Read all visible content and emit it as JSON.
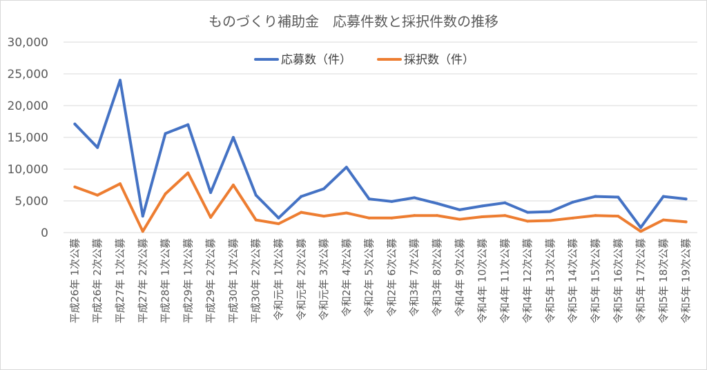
{
  "chart_data": {
    "type": "line",
    "title": "ものづくり補助金　応募件数と採択件数の推移",
    "xlabel": "",
    "ylabel": "",
    "ylim": [
      0,
      30000
    ],
    "yticks": [
      0,
      5000,
      10000,
      15000,
      20000,
      25000,
      30000
    ],
    "ytick_labels": [
      "0",
      "5,000",
      "10,000",
      "15,000",
      "20,000",
      "25,000",
      "30,000"
    ],
    "grid": true,
    "legend_position": "top-center",
    "categories": [
      "平成26年 1次公募",
      "平成26年 2次公募",
      "平成27年 1次公募",
      "平成27年 2次公募",
      "平成28年 1次公募",
      "平成29年 1次公募",
      "平成29年 2次公募",
      "平成30年 1次公募",
      "平成30年 2次公募",
      "令和元年 1次公募",
      "令和元年 2次公募",
      "令和元年 3次公募",
      "令和2年 4次公募",
      "令和2年 5次公募",
      "令和2年 6次公募",
      "令和3年 7次公募",
      "令和3年 8次公募",
      "令和4年 9次公募",
      "令和4年 10次公募",
      "令和4年 11次公募",
      "令和4年 12次公募",
      "令和5年 13次公募",
      "令和5年 14次公募",
      "令和5年 15次公募",
      "令和5年 16次公募",
      "令和5年 17次公募",
      "令和5年 18次公募",
      "令和5年 19次公募"
    ],
    "series": [
      {
        "name": "応募数（件）",
        "color": "#4472c4",
        "values": [
          17100,
          13400,
          24000,
          2600,
          15600,
          17000,
          6300,
          15000,
          5900,
          2300,
          5700,
          6900,
          10300,
          5300,
          4900,
          5500,
          4600,
          3600,
          4200,
          4700,
          3200,
          3300,
          4800,
          5700,
          5600,
          800,
          5700,
          5300
        ]
      },
      {
        "name": "採択数（件）",
        "color": "#ed7d31",
        "values": [
          7200,
          5900,
          7700,
          200,
          6100,
          9400,
          2400,
          7500,
          2000,
          1400,
          3200,
          2600,
          3100,
          2300,
          2300,
          2700,
          2700,
          2100,
          2500,
          2700,
          1800,
          1900,
          2300,
          2700,
          2600,
          200,
          2000,
          1700
        ]
      }
    ]
  }
}
